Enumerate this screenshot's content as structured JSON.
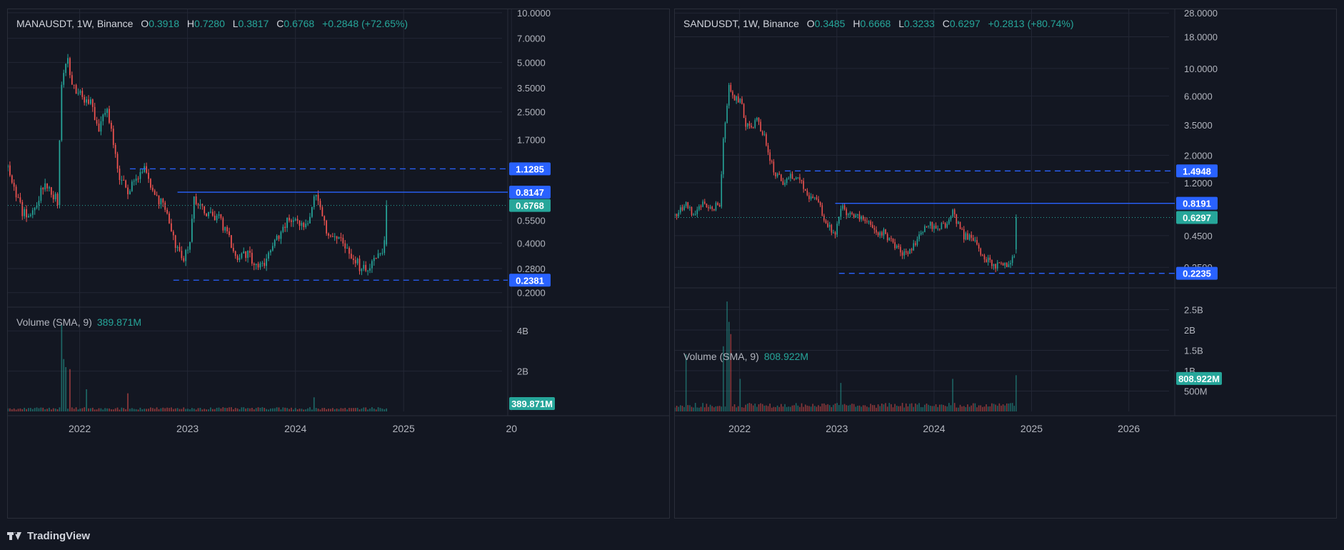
{
  "footer": {
    "brand": "TradingView",
    "logo_icon": "tradingview-logo-icon"
  },
  "colors": {
    "up": "#26a69a",
    "down": "#ef5350",
    "level": "#2962ff",
    "bg": "#131722",
    "grid": "#232735"
  },
  "chart_data": [
    {
      "type": "candlestick",
      "symbol": "MANAUSDT",
      "interval": "1W",
      "exchange": "Binance",
      "ohlc_label": {
        "O": "0.3918",
        "H": "0.7280",
        "L": "0.3817",
        "C": "0.6768",
        "change": "+0.2848",
        "change_pct": "(+72.65%)"
      },
      "y_scale": "log",
      "y_ticks": [
        "10.0000",
        "7.0000",
        "5.0000",
        "3.5000",
        "2.5000",
        "1.7000",
        "0.5500",
        "0.4000",
        "0.2800",
        "0.2000"
      ],
      "ylim": [
        0.17,
        10.5
      ],
      "x_ticks": [
        "2022",
        "2023",
        "2024",
        "2025",
        "20"
      ],
      "xlim": [
        "2021-05-03",
        "2025-11-30"
      ],
      "levels": [
        {
          "value": 1.1285,
          "label": "1.1285",
          "style": "dashed",
          "start": "2022-06-20"
        },
        {
          "value": 0.8147,
          "label": "0.8147",
          "style": "solid",
          "start": "2022-11-28"
        },
        {
          "value": 0.2381,
          "label": "0.2381",
          "style": "dashed",
          "start": "2022-11-14"
        }
      ],
      "last_price": {
        "value": 0.6768,
        "label": "0.6768"
      },
      "anchors": [
        [
          "2021-05-03",
          1.15
        ],
        [
          "2021-06-21",
          0.62
        ],
        [
          "2021-07-19",
          0.58
        ],
        [
          "2021-09-06",
          0.95
        ],
        [
          "2021-10-18",
          0.72
        ],
        [
          "2021-10-31",
          3.5
        ],
        [
          "2021-11-22",
          5.2
        ],
        [
          "2021-12-06",
          3.8
        ],
        [
          "2022-01-10",
          3.0
        ],
        [
          "2022-02-07",
          2.8
        ],
        [
          "2022-03-07",
          2.0
        ],
        [
          "2022-04-04",
          2.7
        ],
        [
          "2022-05-16",
          0.95
        ],
        [
          "2022-06-13",
          0.85
        ],
        [
          "2022-07-11",
          0.93
        ],
        [
          "2022-08-08",
          1.15
        ],
        [
          "2022-09-12",
          0.75
        ],
        [
          "2022-10-24",
          0.65
        ],
        [
          "2022-11-14",
          0.42
        ],
        [
          "2022-12-19",
          0.31
        ],
        [
          "2023-01-09",
          0.42
        ],
        [
          "2023-01-23",
          0.72
        ],
        [
          "2023-02-13",
          0.7
        ],
        [
          "2023-03-13",
          0.59
        ],
        [
          "2023-04-17",
          0.56
        ],
        [
          "2023-05-22",
          0.44
        ],
        [
          "2023-06-12",
          0.33
        ],
        [
          "2023-07-10",
          0.36
        ],
        [
          "2023-08-21",
          0.3
        ],
        [
          "2023-09-25",
          0.31
        ],
        [
          "2023-10-30",
          0.42
        ],
        [
          "2023-12-04",
          0.54
        ],
        [
          "2024-01-08",
          0.52
        ],
        [
          "2024-02-12",
          0.52
        ],
        [
          "2024-03-04",
          0.8
        ],
        [
          "2024-03-25",
          0.68
        ],
        [
          "2024-04-15",
          0.47
        ],
        [
          "2024-05-20",
          0.45
        ],
        [
          "2024-06-24",
          0.36
        ],
        [
          "2024-08-05",
          0.29
        ],
        [
          "2024-09-02",
          0.28
        ],
        [
          "2024-10-07",
          0.33
        ],
        [
          "2024-10-28",
          0.39
        ],
        [
          "2024-11-04",
          0.6768
        ]
      ],
      "volume": {
        "label": "Volume (SMA, 9)",
        "value_label": "389.871M",
        "last_value": 389.871,
        "y_ticks": [
          "4B",
          "2B"
        ],
        "peaks": [
          [
            "2021-10-31",
            4300
          ],
          [
            "2021-11-07",
            2600
          ],
          [
            "2021-11-14",
            2200
          ],
          [
            "2021-11-28",
            2100
          ],
          [
            "2022-01-24",
            1100
          ],
          [
            "2022-06-13",
            900
          ],
          [
            "2024-03-04",
            700
          ]
        ]
      }
    },
    {
      "type": "candlestick",
      "symbol": "SANDUSDT",
      "interval": "1W",
      "exchange": "Binance",
      "ohlc_label": {
        "O": "0.3485",
        "H": "0.6668",
        "L": "0.3233",
        "C": "0.6297",
        "change": "+0.2813",
        "change_pct": "(+80.74%)"
      },
      "y_scale": "log",
      "y_ticks": [
        "28.0000",
        "18.0000",
        "10.0000",
        "6.0000",
        "3.5000",
        "2.0000",
        "1.2000",
        "0.4500",
        "0.2500"
      ],
      "ylim": [
        0.18,
        30
      ],
      "x_ticks": [
        "2022",
        "2023",
        "2024",
        "2025",
        "2026"
      ],
      "xlim": [
        "2021-05-03",
        "2026-06-01"
      ],
      "levels": [
        {
          "value": 1.4948,
          "label": "1.4948",
          "style": "dashed",
          "start": "2022-06-20"
        },
        {
          "value": 0.8191,
          "label": "0.8191",
          "style": "solid",
          "start": "2022-12-26"
        },
        {
          "value": 0.2235,
          "label": "0.2235",
          "style": "dashed",
          "start": "2023-01-09"
        }
      ],
      "last_price": {
        "value": 0.6297,
        "label": "0.6297"
      },
      "anchors": [
        [
          "2021-05-03",
          0.65
        ],
        [
          "2021-06-14",
          0.8
        ],
        [
          "2021-07-12",
          0.65
        ],
        [
          "2021-08-09",
          0.8
        ],
        [
          "2021-09-20",
          0.75
        ],
        [
          "2021-10-18",
          0.8
        ],
        [
          "2021-11-01",
          2.8
        ],
        [
          "2021-11-22",
          7.5
        ],
        [
          "2021-12-13",
          5.5
        ],
        [
          "2022-01-03",
          5.8
        ],
        [
          "2022-01-24",
          3.5
        ],
        [
          "2022-02-14",
          3.2
        ],
        [
          "2022-03-07",
          3.8
        ],
        [
          "2022-04-04",
          2.8
        ],
        [
          "2022-05-09",
          1.5
        ],
        [
          "2022-06-13",
          1.2
        ],
        [
          "2022-07-11",
          1.4
        ],
        [
          "2022-08-15",
          1.25
        ],
        [
          "2022-09-19",
          0.92
        ],
        [
          "2022-10-24",
          0.85
        ],
        [
          "2022-11-21",
          0.55
        ],
        [
          "2022-12-26",
          0.48
        ],
        [
          "2023-01-16",
          0.78
        ],
        [
          "2023-02-06",
          0.7
        ],
        [
          "2023-03-20",
          0.63
        ],
        [
          "2023-04-24",
          0.58
        ],
        [
          "2023-05-29",
          0.46
        ],
        [
          "2023-06-26",
          0.48
        ],
        [
          "2023-07-31",
          0.38
        ],
        [
          "2023-09-04",
          0.32
        ],
        [
          "2023-10-02",
          0.34
        ],
        [
          "2023-11-13",
          0.48
        ],
        [
          "2023-12-11",
          0.55
        ],
        [
          "2024-01-15",
          0.52
        ],
        [
          "2024-02-12",
          0.55
        ],
        [
          "2024-03-11",
          0.7
        ],
        [
          "2024-03-25",
          0.6
        ],
        [
          "2024-04-22",
          0.45
        ],
        [
          "2024-05-27",
          0.42
        ],
        [
          "2024-07-01",
          0.32
        ],
        [
          "2024-08-05",
          0.26
        ],
        [
          "2024-09-09",
          0.26
        ],
        [
          "2024-10-14",
          0.26
        ],
        [
          "2024-10-28",
          0.32
        ],
        [
          "2024-11-04",
          0.6297
        ]
      ],
      "volume": {
        "label": "Volume (SMA, 9)",
        "value_label": "808.922M",
        "last_value": 808.922,
        "y_ticks": [
          "2.5B",
          "2B",
          "1.5B",
          "1B",
          "500M"
        ],
        "peaks": [
          [
            "2021-06-14",
            1400
          ],
          [
            "2021-10-31",
            1600
          ],
          [
            "2021-11-14",
            2700
          ],
          [
            "2021-11-21",
            2200
          ],
          [
            "2021-11-28",
            1900
          ],
          [
            "2022-01-03",
            800
          ],
          [
            "2023-01-16",
            700
          ],
          [
            "2024-03-11",
            800
          ],
          [
            "2024-11-04",
            900
          ]
        ]
      }
    }
  ]
}
